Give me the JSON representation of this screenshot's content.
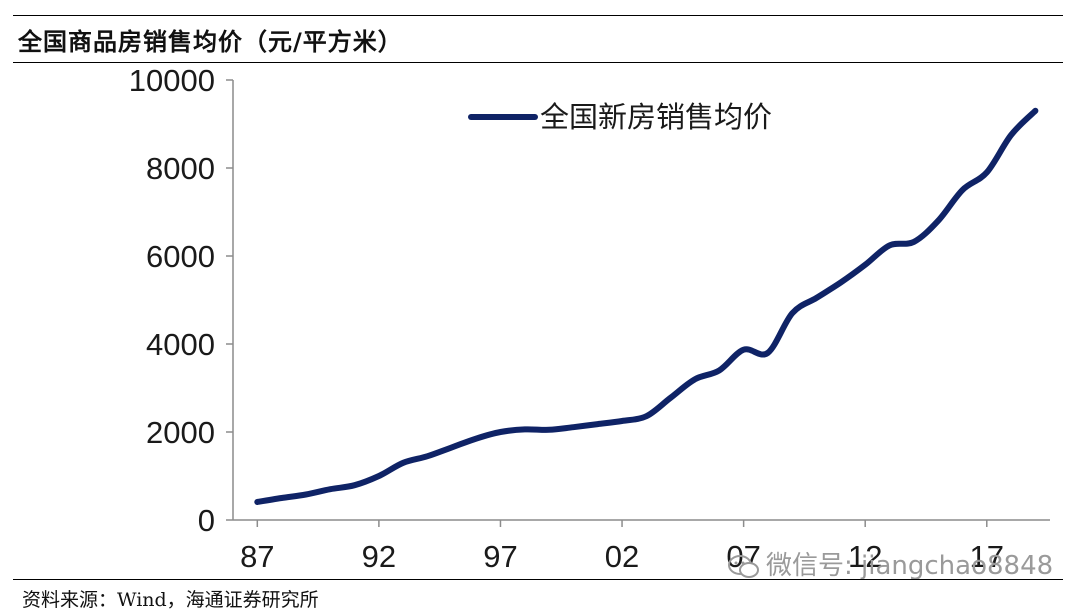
{
  "header": {
    "title": "全国商品房销售均价（元/平方米）"
  },
  "footer": {
    "source": "资料来源：Wind，海通证券研究所"
  },
  "watermark": {
    "text": "微信号: jiangchao8848",
    "icon": "wechat-icon"
  },
  "colors": {
    "series": "#0f2366",
    "axis": "#8c8c8c"
  },
  "chart_data": {
    "type": "line",
    "title": "全国商品房销售均价（元/平方米）",
    "xlabel": "",
    "ylabel": "",
    "ylim": [
      0,
      10000
    ],
    "yticks": [
      0,
      2000,
      4000,
      6000,
      8000,
      10000
    ],
    "ytick_labels": [
      "0",
      "2000",
      "4000",
      "6000",
      "8000",
      "10000"
    ],
    "xticks": [
      1987,
      1992,
      1997,
      2002,
      2007,
      2012,
      2017
    ],
    "xtick_labels": [
      "87",
      "92",
      "97",
      "02",
      "07",
      "12",
      "17"
    ],
    "grid": false,
    "legend": "top-right",
    "series": [
      {
        "name": "全国新房销售均价",
        "x": [
          1987,
          1988,
          1989,
          1990,
          1991,
          1992,
          1993,
          1994,
          1995,
          1996,
          1997,
          1998,
          1999,
          2000,
          2001,
          2002,
          2003,
          2004,
          2005,
          2006,
          2007,
          2008,
          2009,
          2010,
          2011,
          2012,
          2013,
          2014,
          2015,
          2016,
          2017,
          2018,
          2019
        ],
        "y": [
          410,
          500,
          580,
          700,
          790,
          1000,
          1300,
          1450,
          1650,
          1850,
          2000,
          2060,
          2050,
          2110,
          2180,
          2250,
          2360,
          2780,
          3200,
          3400,
          3870,
          3800,
          4700,
          5050,
          5400,
          5800,
          6240,
          6320,
          6800,
          7500,
          7900,
          8750,
          9300
        ]
      }
    ]
  }
}
